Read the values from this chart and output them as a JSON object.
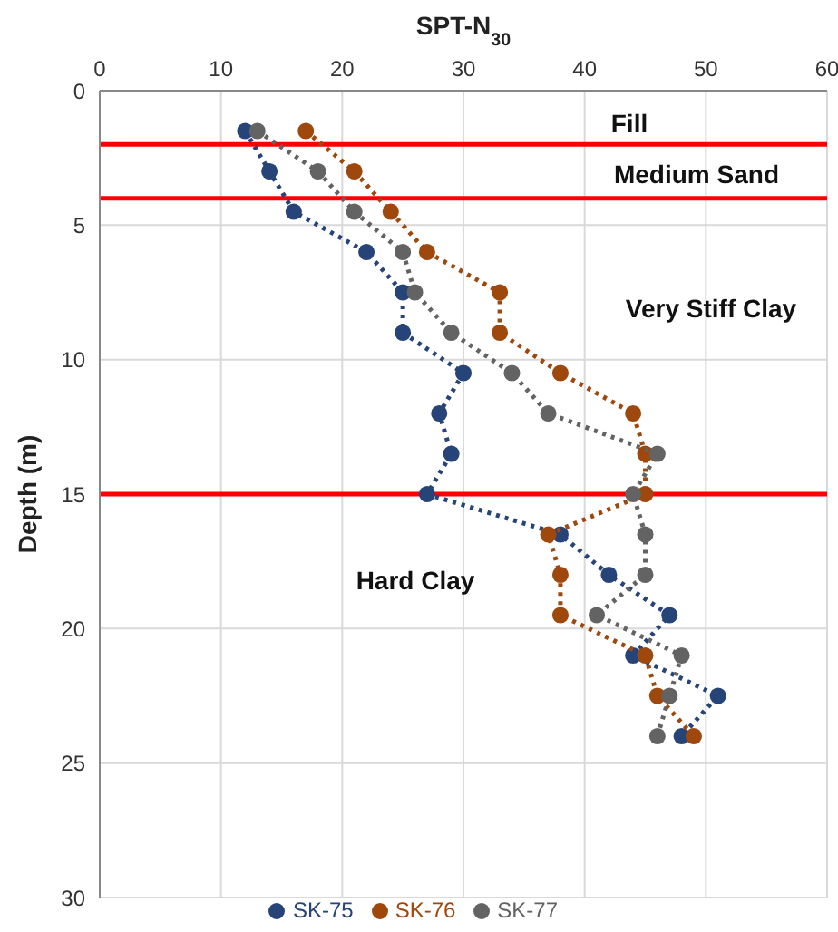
{
  "chart_data": {
    "type": "line",
    "xlabel": "SPT-N$_{30}$",
    "ylabel": "Depth (m)",
    "xlim": [
      0,
      60
    ],
    "xticks": [
      0,
      10,
      20,
      30,
      40,
      50,
      60
    ],
    "ylim": [
      30,
      0
    ],
    "yticks": [
      0,
      5,
      10,
      15,
      20,
      25,
      30
    ],
    "grid": true,
    "legend": "bottom",
    "marker": "circle",
    "line_style": "dotted",
    "series": [
      {
        "name": "SK-75",
        "color": "#264478",
        "x": [
          12,
          14,
          16,
          22,
          25,
          25,
          30,
          28,
          29,
          27,
          38,
          42,
          47,
          44,
          51,
          48
        ],
        "values": [
          1.5,
          3,
          4.5,
          6,
          7.5,
          9,
          10.5,
          12,
          13.5,
          15,
          16.5,
          18,
          19.5,
          21,
          22.5,
          24
        ]
      },
      {
        "name": "SK-76",
        "color": "#9e480e",
        "x": [
          17,
          21,
          24,
          27,
          33,
          33,
          38,
          44,
          45,
          45,
          37,
          38,
          38,
          45,
          46,
          49
        ],
        "values": [
          1.5,
          3,
          4.5,
          6,
          7.5,
          9,
          10.5,
          12,
          13.5,
          15,
          16.5,
          18,
          19.5,
          21,
          22.5,
          24
        ]
      },
      {
        "name": "SK-77",
        "color": "#636363",
        "x": [
          13,
          18,
          21,
          25,
          26,
          29,
          34,
          37,
          46,
          44,
          45,
          45,
          41,
          48,
          47,
          46
        ],
        "values": [
          1.5,
          3,
          4.5,
          6,
          7.5,
          9,
          10.5,
          12,
          13.5,
          15,
          16.5,
          18,
          19.5,
          21,
          22.5,
          24
        ]
      }
    ],
    "ref_lines": [
      {
        "axis": "y",
        "value": 2,
        "color": "#ff0000"
      },
      {
        "axis": "y",
        "value": 4,
        "color": "#ff0000"
      },
      {
        "axis": "y",
        "value": 15,
        "color": "#ff0000"
      }
    ],
    "annotations": [
      "Fill",
      "Medium Sand",
      "Very Stiff Clay",
      "Hard Clay"
    ]
  }
}
